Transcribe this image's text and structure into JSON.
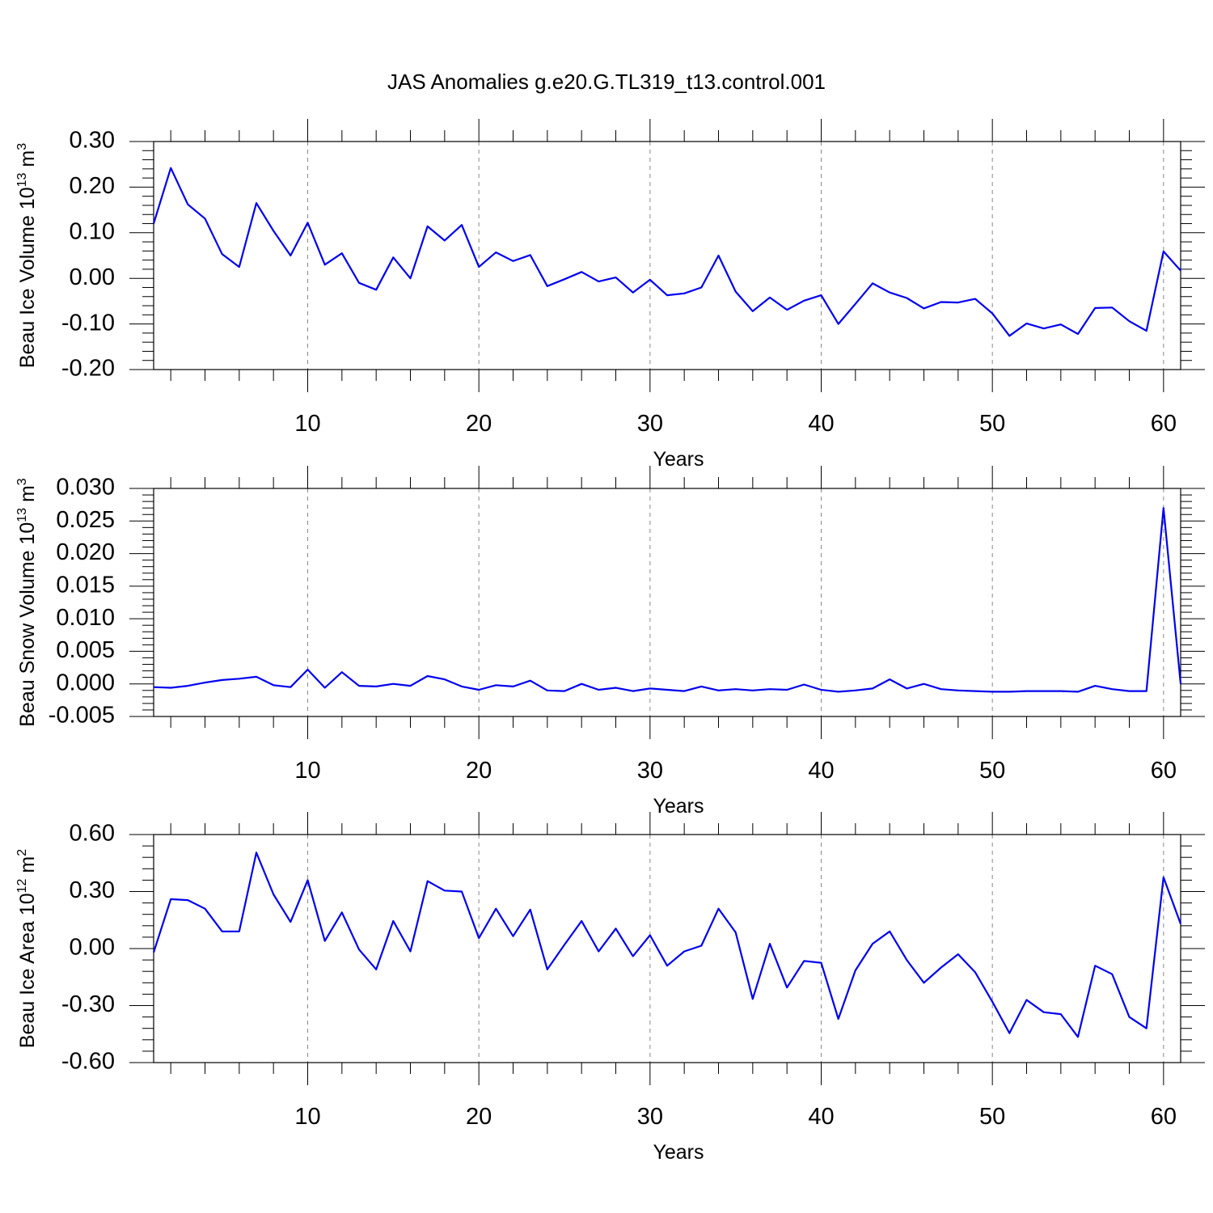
{
  "title": "JAS Anomalies g.e20.G.TL319_t13.control.001",
  "colors": {
    "series": "#0000ee",
    "grid": "#888888",
    "axis": "#000000"
  },
  "chart_data": [
    {
      "type": "line",
      "ylabel_main": "Beau Ice Volume 10",
      "ylabel_exp": "13",
      "ylabel_unit": "m",
      "ylabel_unit_exp": "3",
      "xlabel": "Years",
      "xlim": [
        1,
        61
      ],
      "ylim": [
        -0.2,
        0.3
      ],
      "yticks": [
        -0.2,
        -0.1,
        0.0,
        0.1,
        0.2,
        0.3
      ],
      "ytick_labels": [
        "-0.20",
        "-0.10",
        "0.00",
        "0.10",
        "0.20",
        "0.30"
      ],
      "xticks": [
        10,
        20,
        30,
        40,
        50,
        60
      ],
      "xtick_labels": [
        "10",
        "20",
        "30",
        "40",
        "50",
        "60"
      ],
      "grid": "vertical dashed at major x ticks",
      "x": [
        1,
        2,
        3,
        4,
        5,
        6,
        7,
        8,
        9,
        10,
        11,
        12,
        13,
        14,
        15,
        16,
        17,
        18,
        19,
        20,
        21,
        22,
        23,
        24,
        25,
        26,
        27,
        28,
        29,
        30,
        31,
        32,
        33,
        34,
        35,
        36,
        37,
        38,
        39,
        40,
        41,
        42,
        43,
        44,
        45,
        46,
        47,
        48,
        49,
        50,
        51,
        52,
        53,
        54,
        55,
        56,
        57,
        58,
        59,
        60,
        61
      ],
      "y": [
        0.12,
        0.242,
        0.162,
        0.131,
        0.053,
        0.025,
        0.165,
        0.104,
        0.05,
        0.122,
        0.03,
        0.055,
        -0.01,
        -0.025,
        0.046,
        0.0,
        0.114,
        0.083,
        0.117,
        0.025,
        0.057,
        0.038,
        0.051,
        -0.017,
        -0.002,
        0.014,
        -0.007,
        0.002,
        -0.031,
        -0.003,
        -0.037,
        -0.033,
        -0.02,
        0.05,
        -0.029,
        -0.072,
        -0.042,
        -0.069,
        -0.049,
        -0.037,
        -0.1,
        -0.056,
        -0.011,
        -0.031,
        -0.043,
        -0.066,
        -0.052,
        -0.053,
        -0.045,
        -0.077,
        -0.126,
        -0.099,
        -0.11,
        -0.101,
        -0.122,
        -0.065,
        -0.064,
        -0.094,
        -0.115,
        0.059,
        0.017
      ]
    },
    {
      "type": "line",
      "ylabel_main": "Beau Snow Volume 10",
      "ylabel_exp": "13",
      "ylabel_unit": "m",
      "ylabel_unit_exp": "3",
      "xlabel": "Years",
      "xlim": [
        1,
        61
      ],
      "ylim": [
        -0.005,
        0.03
      ],
      "yticks": [
        -0.005,
        0.0,
        0.005,
        0.01,
        0.015,
        0.02,
        0.025,
        0.03
      ],
      "ytick_labels": [
        "-0.005",
        "0.000",
        "0.005",
        "0.010",
        "0.015",
        "0.020",
        "0.025",
        "0.030"
      ],
      "xticks": [
        10,
        20,
        30,
        40,
        50,
        60
      ],
      "xtick_labels": [
        "10",
        "20",
        "30",
        "40",
        "50",
        "60"
      ],
      "grid": "vertical dashed at major x ticks",
      "x": [
        1,
        2,
        3,
        4,
        5,
        6,
        7,
        8,
        9,
        10,
        11,
        12,
        13,
        14,
        15,
        16,
        17,
        18,
        19,
        20,
        21,
        22,
        23,
        24,
        25,
        26,
        27,
        28,
        29,
        30,
        31,
        32,
        33,
        34,
        35,
        36,
        37,
        38,
        39,
        40,
        41,
        42,
        43,
        44,
        45,
        46,
        47,
        48,
        49,
        50,
        51,
        52,
        53,
        54,
        55,
        56,
        57,
        58,
        59,
        60,
        61
      ],
      "y": [
        -0.0005,
        -0.0006,
        -0.0003,
        0.0002,
        0.0006,
        0.0008,
        0.0011,
        -0.0002,
        -0.0005,
        0.0022,
        -0.0006,
        0.0018,
        -0.0003,
        -0.0004,
        0.0,
        -0.0003,
        0.0012,
        0.0007,
        -0.0004,
        -0.0009,
        -0.0002,
        -0.0004,
        0.0005,
        -0.001,
        -0.0011,
        0.0,
        -0.0009,
        -0.0006,
        -0.0011,
        -0.0007,
        -0.0009,
        -0.0011,
        -0.0004,
        -0.001,
        -0.0008,
        -0.001,
        -0.0008,
        -0.0009,
        -0.0001,
        -0.0009,
        -0.0012,
        -0.001,
        -0.0007,
        0.0007,
        -0.0007,
        0.0,
        -0.0008,
        -0.001,
        -0.0011,
        -0.0012,
        -0.0012,
        -0.0011,
        -0.0011,
        -0.0011,
        -0.0012,
        -0.0003,
        -0.0008,
        -0.0011,
        -0.0011,
        0.027,
        0.0
      ]
    },
    {
      "type": "line",
      "ylabel_main": "Beau Ice Area 10",
      "ylabel_exp": "12",
      "ylabel_unit": "m",
      "ylabel_unit_exp": "2",
      "xlabel": "Years",
      "xlim": [
        1,
        61
      ],
      "ylim": [
        -0.6,
        0.6
      ],
      "yticks": [
        -0.6,
        -0.3,
        0.0,
        0.3,
        0.6
      ],
      "ytick_labels": [
        "-0.60",
        "-0.30",
        "0.00",
        "0.30",
        "0.60"
      ],
      "xticks": [
        10,
        20,
        30,
        40,
        50,
        60
      ],
      "xtick_labels": [
        "10",
        "20",
        "30",
        "40",
        "50",
        "60"
      ],
      "grid": "vertical dashed at major x ticks",
      "x": [
        1,
        2,
        3,
        4,
        5,
        6,
        7,
        8,
        9,
        10,
        11,
        12,
        13,
        14,
        15,
        16,
        17,
        18,
        19,
        20,
        21,
        22,
        23,
        24,
        25,
        26,
        27,
        28,
        29,
        30,
        31,
        32,
        33,
        34,
        35,
        36,
        37,
        38,
        39,
        40,
        41,
        42,
        43,
        44,
        45,
        46,
        47,
        48,
        49,
        50,
        51,
        52,
        53,
        54,
        55,
        56,
        57,
        58,
        59,
        60,
        61
      ],
      "y": [
        -0.02,
        0.26,
        0.255,
        0.21,
        0.09,
        0.09,
        0.505,
        0.285,
        0.14,
        0.36,
        0.04,
        0.19,
        -0.005,
        -0.11,
        0.145,
        -0.015,
        0.355,
        0.305,
        0.3,
        0.055,
        0.21,
        0.065,
        0.205,
        -0.11,
        0.02,
        0.145,
        -0.015,
        0.105,
        -0.04,
        0.07,
        -0.09,
        -0.015,
        0.015,
        0.21,
        0.085,
        -0.265,
        0.025,
        -0.205,
        -0.065,
        -0.075,
        -0.37,
        -0.115,
        0.025,
        0.09,
        -0.06,
        -0.18,
        -0.1,
        -0.03,
        -0.125,
        -0.28,
        -0.445,
        -0.27,
        -0.335,
        -0.345,
        -0.465,
        -0.09,
        -0.135,
        -0.36,
        -0.42,
        0.375,
        0.13
      ]
    }
  ]
}
